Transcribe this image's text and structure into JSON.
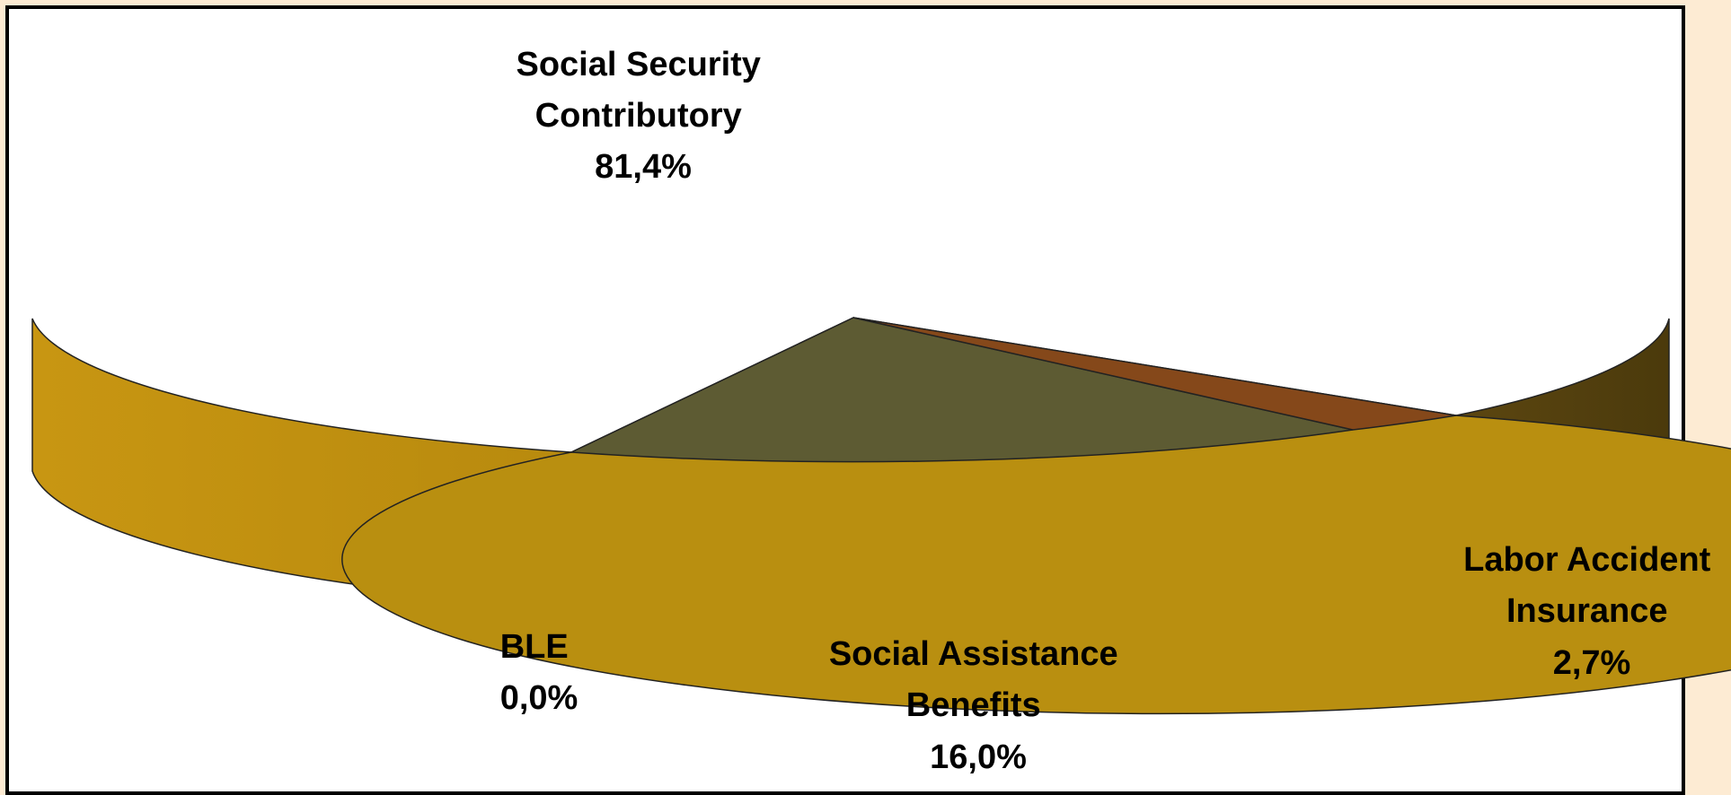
{
  "chart_data": {
    "type": "pie",
    "style": "3d",
    "slices": [
      {
        "label_lines": [
          "Social Security",
          "Contributory"
        ],
        "value_text": "81,4%",
        "value": 81.4,
        "color": "#b98f10"
      },
      {
        "label_lines": [
          "Labor Accident",
          "Insurance"
        ],
        "value_text": "2,7%",
        "value": 2.7,
        "color": "#85481a"
      },
      {
        "label_lines": [
          "Social Assistance",
          "Benefits"
        ],
        "value_text": "16,0%",
        "value": 16.0,
        "color": "#5d5b33"
      },
      {
        "label_lines": [
          "BLE"
        ],
        "value_text": "0,0%",
        "value": 0.0,
        "color": "#000000"
      }
    ],
    "legend": "none"
  }
}
